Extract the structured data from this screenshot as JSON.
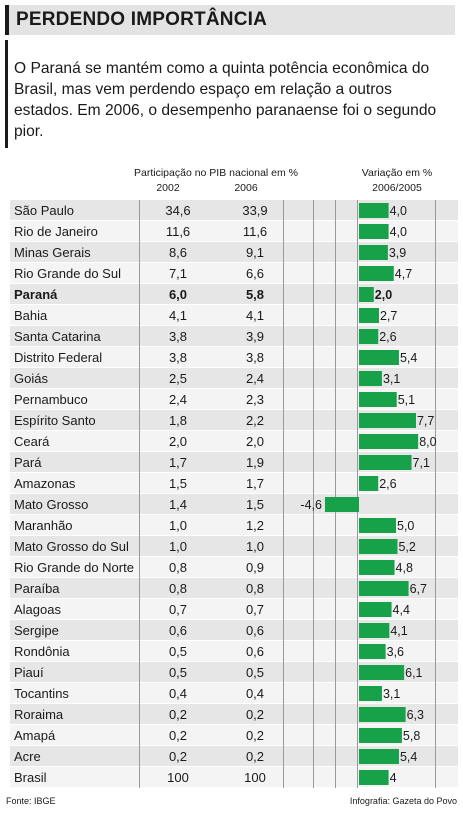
{
  "header": {
    "title": "PERDENDO IMPORTÂNCIA"
  },
  "intro": {
    "text": "O Paraná se mantém como a quinta potência econômica do Brasil, mas vem perdendo espaço em relação a outros estados. Em 2006, o desempenho paranaense foi o segundo pior."
  },
  "columns": {
    "participacao": "Participação no PIB nacional em %",
    "y2002": "2002",
    "y2006": "2006",
    "variacao": "Variação em %",
    "period": "2006/2005"
  },
  "footer": {
    "source": "Fonte: IBGE",
    "credit": "Infografia: Gazeta do Povo"
  },
  "colors": {
    "bar": "#17a24a",
    "header_bg": "#e3e3e3",
    "row_odd": "#e6e6e6",
    "row_even": "#f4f4f4"
  },
  "chart_data": {
    "type": "table",
    "columns": [
      "Participação no PIB nacional em % 2002",
      "Participação no PIB nacional em % 2006",
      "Variação em % 2006/2005"
    ],
    "rows": [
      {
        "state": "São Paulo",
        "p2002": "34,6",
        "p2006": "33,9",
        "var_label": "4,0",
        "var": 4.0
      },
      {
        "state": "Rio de Janeiro",
        "p2002": "11,6",
        "p2006": "11,6",
        "var_label": "4,0",
        "var": 4.0
      },
      {
        "state": "Minas Gerais",
        "p2002": "8,6",
        "p2006": "9,1",
        "var_label": "3,9",
        "var": 3.9
      },
      {
        "state": "Rio Grande do Sul",
        "p2002": "7,1",
        "p2006": "6,6",
        "var_label": "4,7",
        "var": 4.7
      },
      {
        "state": "Paraná",
        "p2002": "6,0",
        "p2006": "5,8",
        "var_label": "2,0",
        "var": 2.0,
        "highlight": true
      },
      {
        "state": "Bahia",
        "p2002": "4,1",
        "p2006": "4,1",
        "var_label": "2,7",
        "var": 2.7
      },
      {
        "state": "Santa Catarina",
        "p2002": "3,8",
        "p2006": "3,9",
        "var_label": "2,6",
        "var": 2.6
      },
      {
        "state": "Distrito Federal",
        "p2002": "3,8",
        "p2006": "3,8",
        "var_label": "5,4",
        "var": 5.4
      },
      {
        "state": "Goiás",
        "p2002": "2,5",
        "p2006": "2,4",
        "var_label": "3,1",
        "var": 3.1
      },
      {
        "state": "Pernambuco",
        "p2002": "2,4",
        "p2006": "2,3",
        "var_label": "5,1",
        "var": 5.1
      },
      {
        "state": "Espírito Santo",
        "p2002": "1,8",
        "p2006": "2,2",
        "var_label": "7,7",
        "var": 7.7
      },
      {
        "state": "Ceará",
        "p2002": "2,0",
        "p2006": "2,0",
        "var_label": "8,0",
        "var": 8.0
      },
      {
        "state": "Pará",
        "p2002": "1,7",
        "p2006": "1,9",
        "var_label": "7,1",
        "var": 7.1
      },
      {
        "state": "Amazonas",
        "p2002": "1,5",
        "p2006": "1,7",
        "var_label": "2,6",
        "var": 2.6
      },
      {
        "state": "Mato Grosso",
        "p2002": "1,4",
        "p2006": "1,5",
        "var_label": "-4,6",
        "var": -4.6
      },
      {
        "state": "Maranhão",
        "p2002": "1,0",
        "p2006": "1,2",
        "var_label": "5,0",
        "var": 5.0
      },
      {
        "state": "Mato Grosso do Sul",
        "p2002": "1,0",
        "p2006": "1,0",
        "var_label": "5,2",
        "var": 5.2
      },
      {
        "state": "Rio Grande do Norte",
        "p2002": "0,8",
        "p2006": "0,9",
        "var_label": "4,8",
        "var": 4.8
      },
      {
        "state": "Paraíba",
        "p2002": "0,8",
        "p2006": "0,8",
        "var_label": "6,7",
        "var": 6.7
      },
      {
        "state": "Alagoas",
        "p2002": "0,7",
        "p2006": "0,7",
        "var_label": "4,4",
        "var": 4.4
      },
      {
        "state": "Sergipe",
        "p2002": "0,6",
        "p2006": "0,6",
        "var_label": "4,1",
        "var": 4.1
      },
      {
        "state": "Rondônia",
        "p2002": "0,5",
        "p2006": "0,6",
        "var_label": "3,6",
        "var": 3.6
      },
      {
        "state": "Piauí",
        "p2002": "0,5",
        "p2006": "0,5",
        "var_label": "6,1",
        "var": 6.1
      },
      {
        "state": "Tocantins",
        "p2002": "0,4",
        "p2006": "0,4",
        "var_label": "3,1",
        "var": 3.1
      },
      {
        "state": "Roraima",
        "p2002": "0,2",
        "p2006": "0,2",
        "var_label": "6,3",
        "var": 6.3
      },
      {
        "state": "Amapá",
        "p2002": "0,2",
        "p2006": "0,2",
        "var_label": "5,8",
        "var": 5.8
      },
      {
        "state": "Acre",
        "p2002": "0,2",
        "p2006": "0,2",
        "var_label": "5,4",
        "var": 5.4
      },
      {
        "state": "Brasil",
        "p2002": "100",
        "p2006": "100",
        "var_label": "4",
        "var": 4.0
      }
    ]
  }
}
